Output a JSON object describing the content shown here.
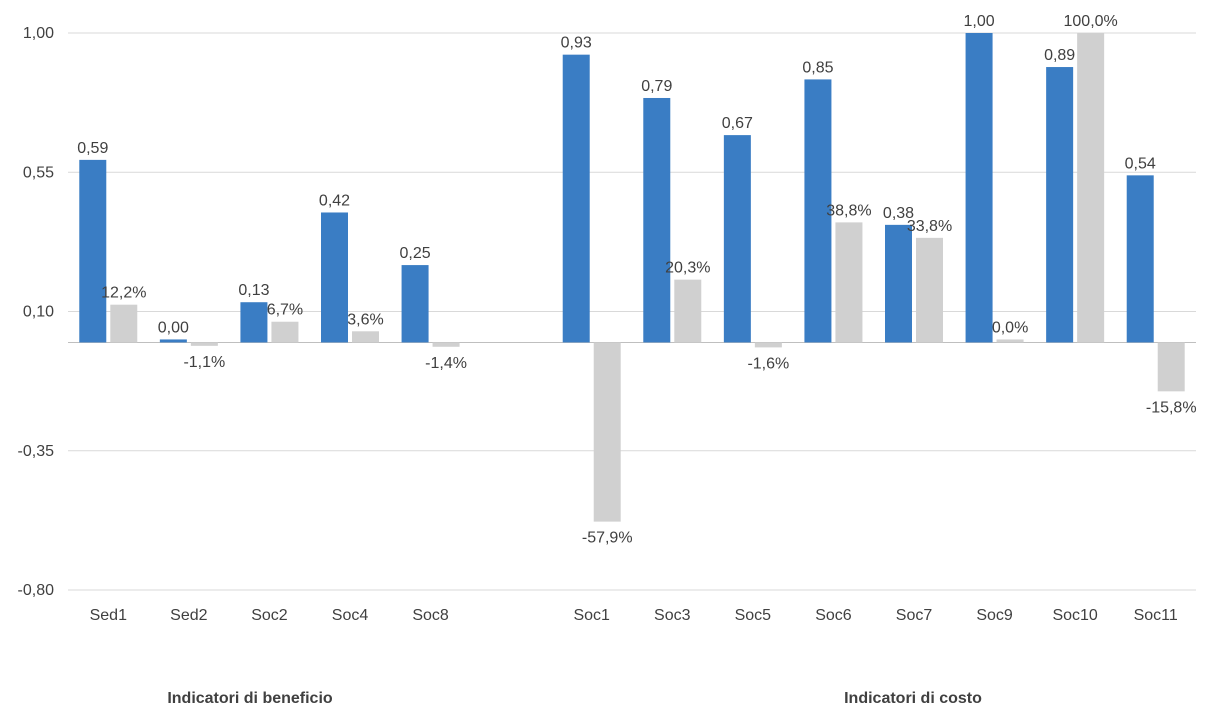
{
  "chart_data": {
    "type": "bar",
    "y_ticks": [
      "1,00",
      "0,55",
      "0,10",
      "-0,35",
      "-0,80"
    ],
    "y_tick_values": [
      1.0,
      0.55,
      0.1,
      -0.35,
      -0.8
    ],
    "ylim": [
      -0.8,
      1.0
    ],
    "grid": true,
    "legend": "none",
    "categories": [
      "Sed1",
      "Sed2",
      "Soc2",
      "Soc4",
      "Soc8",
      "",
      "Soc1",
      "Soc3",
      "Soc5",
      "Soc6",
      "Soc7",
      "Soc9",
      "Soc10",
      "Soc11"
    ],
    "series": [
      {
        "color": "#3a7dc4",
        "values": [
          0.59,
          0.0,
          0.13,
          0.42,
          0.25,
          null,
          0.93,
          0.79,
          0.67,
          0.85,
          0.38,
          1.0,
          0.89,
          0.54
        ],
        "labels": [
          "0,59",
          "0,00",
          "0,13",
          "0,42",
          "0,25",
          "",
          "0,93",
          "0,79",
          "0,67",
          "0,85",
          "0,38",
          "1,00",
          "0,89",
          "0,54"
        ]
      },
      {
        "color": "#d0d0d0",
        "values": [
          0.122,
          -0.011,
          0.067,
          0.036,
          -0.014,
          null,
          -0.579,
          0.203,
          -0.016,
          0.388,
          0.338,
          0.0,
          1.0,
          -0.158
        ],
        "labels": [
          "12,2%",
          "-1,1%",
          "6,7%",
          "3,6%",
          "-1,4%",
          "",
          "-57,9%",
          "20,3%",
          "-1,6%",
          "38,8%",
          "33,8%",
          "0,0%",
          "100,0%",
          "-15,8%"
        ]
      }
    ],
    "groups": [
      {
        "label": "Indicatori di beneficio"
      },
      {
        "label": "Indicatori di costo"
      }
    ]
  }
}
